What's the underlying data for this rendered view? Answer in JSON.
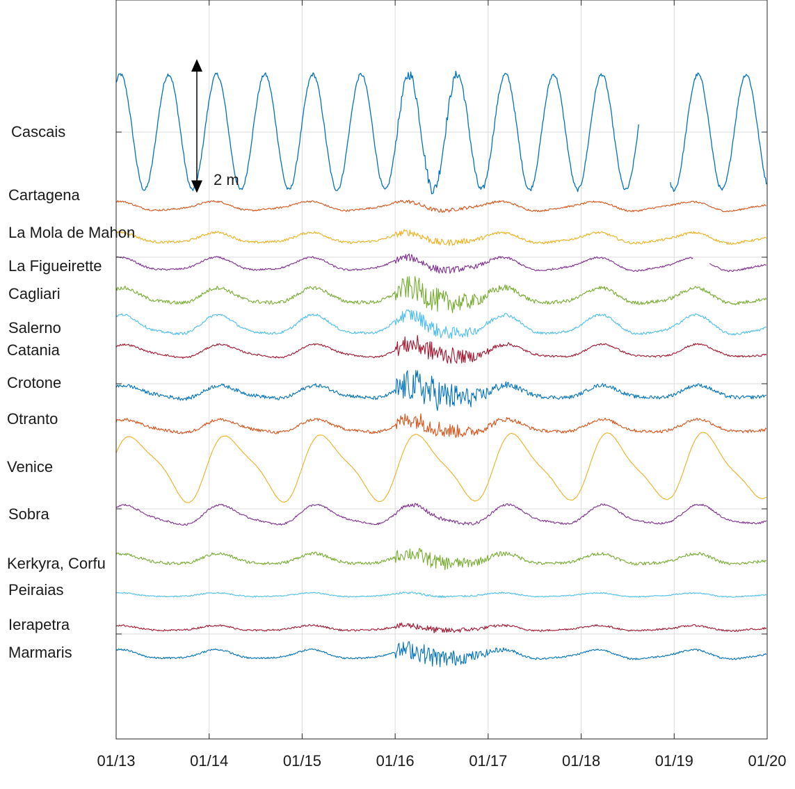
{
  "chart_data": {
    "type": "line",
    "title": "",
    "xlabel": "",
    "ylabel": "",
    "x_ticks": [
      "01/13",
      "01/14",
      "01/15",
      "01/16",
      "01/17",
      "01/18",
      "01/19",
      "01/20"
    ],
    "x_range": [
      "01/13",
      "01/20"
    ],
    "y_axis_ticks_shown": false,
    "grid": true,
    "scale_bar": {
      "label": "2 m",
      "value_m": 2
    },
    "series_note": "Sea level per station (stacked with vertical offsets); estimated tidal amplitude in m, dominant period in hours, noise level and disturbance after 01/16",
    "series": [
      {
        "name": "Cascais",
        "color": "#0072BD",
        "amplitude_m": 0.95,
        "period_h": 12.42,
        "noise_m": 0.03,
        "burst_m": 0.06,
        "gaps": [
          [
            "01/18 15:00",
            "01/18 23:00"
          ]
        ]
      },
      {
        "name": "Cartagena",
        "color": "#D95319",
        "amplitude_m": 0.07,
        "period_h": 24.5,
        "noise_m": 0.015,
        "burst_m": 0.02,
        "gaps": []
      },
      {
        "name": "La Mola de Mahon",
        "color": "#EDB120",
        "amplitude_m": 0.08,
        "period_h": 24.5,
        "noise_m": 0.02,
        "burst_m": 0.04,
        "gaps": []
      },
      {
        "name": "La Figueirette",
        "color": "#7E2F8E",
        "amplitude_m": 0.1,
        "period_h": 24.5,
        "noise_m": 0.015,
        "burst_m": 0.05,
        "gaps": [
          [
            "01/19 05:00",
            "01/19 09:00"
          ]
        ]
      },
      {
        "name": "Cagliari",
        "color": "#77AC30",
        "amplitude_m": 0.12,
        "period_h": 24.5,
        "noise_m": 0.03,
        "burst_m": 0.18,
        "gaps": []
      },
      {
        "name": "Salerno",
        "color": "#4DBEEE",
        "amplitude_m": 0.15,
        "period_h": 24.5,
        "noise_m": 0.02,
        "burst_m": 0.1,
        "gaps": []
      },
      {
        "name": "Catania",
        "color": "#A2142F",
        "amplitude_m": 0.1,
        "period_h": 24.5,
        "noise_m": 0.015,
        "burst_m": 0.15,
        "gaps": []
      },
      {
        "name": "Crotone",
        "color": "#0072BD",
        "amplitude_m": 0.1,
        "period_h": 24.5,
        "noise_m": 0.03,
        "burst_m": 0.25,
        "gaps": []
      },
      {
        "name": "Otranto",
        "color": "#D95319",
        "amplitude_m": 0.1,
        "period_h": 24.5,
        "noise_m": 0.025,
        "burst_m": 0.12,
        "gaps": []
      },
      {
        "name": "Venice",
        "color": "#EDB120",
        "amplitude_m": 0.5,
        "period_h": 24.6,
        "noise_m": 0.005,
        "burst_m": 0.0,
        "gaps": []
      },
      {
        "name": "Sobra",
        "color": "#7E2F8E",
        "amplitude_m": 0.15,
        "period_h": 24.6,
        "noise_m": 0.015,
        "burst_m": 0.02,
        "gaps": []
      },
      {
        "name": "Kerkyra, Corfu",
        "color": "#77AC30",
        "amplitude_m": 0.08,
        "period_h": 24.5,
        "noise_m": 0.025,
        "burst_m": 0.1,
        "gaps": []
      },
      {
        "name": "Peiraias",
        "color": "#4DBEEE",
        "amplitude_m": 0.03,
        "period_h": 24.5,
        "noise_m": 0.01,
        "burst_m": 0.01,
        "gaps": []
      },
      {
        "name": "Ierapetra",
        "color": "#A2142F",
        "amplitude_m": 0.04,
        "period_h": 24.5,
        "noise_m": 0.015,
        "burst_m": 0.04,
        "gaps": []
      },
      {
        "name": "Marmaris",
        "color": "#0072BD",
        "amplitude_m": 0.07,
        "period_h": 24.5,
        "noise_m": 0.015,
        "burst_m": 0.15,
        "gaps": []
      }
    ]
  }
}
